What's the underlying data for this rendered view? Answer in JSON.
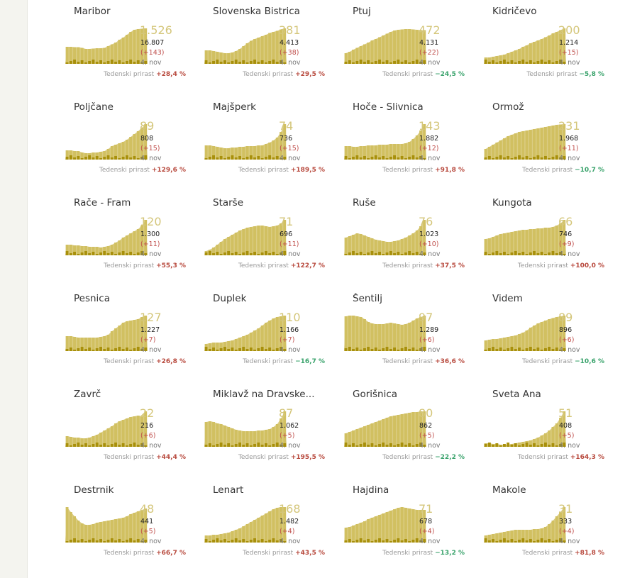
{
  "labels": {
    "growth_label": "Tedenski prirast",
    "date": "4. nov"
  },
  "colors": {
    "area": "#d5c46f",
    "bar": "#d1c061",
    "dark": "#a8900b",
    "pos": "#b84a3e",
    "neg": "#3aa36c"
  },
  "chart_data": [
    {
      "type": "bar",
      "title": "Maribor",
      "big": "1.526",
      "total": "16.807",
      "delta": "(+143)",
      "date": "4. nov",
      "growth": "+28,4 %",
      "trend": "pos",
      "values": [
        0.48,
        0.48,
        0.47,
        0.47,
        0.45,
        0.42,
        0.42,
        0.43,
        0.44,
        0.44,
        0.45,
        0.5,
        0.55,
        0.6,
        0.68,
        0.74,
        0.82,
        0.9,
        0.96,
        0.98,
        0.99,
        1.0
      ]
    },
    {
      "type": "bar",
      "title": "Slovenska Bistrica",
      "big": "381",
      "total": "4.413",
      "delta": "(+38)",
      "date": "4. nov",
      "growth": "+29,5 %",
      "trend": "pos",
      "values": [
        0.38,
        0.38,
        0.36,
        0.34,
        0.32,
        0.3,
        0.3,
        0.32,
        0.36,
        0.42,
        0.5,
        0.58,
        0.65,
        0.7,
        0.74,
        0.78,
        0.82,
        0.87,
        0.9,
        0.93,
        0.97,
        1.0
      ]
    },
    {
      "type": "bar",
      "title": "Ptuj",
      "big": "472",
      "total": "4.131",
      "delta": "(+22)",
      "date": "4. nov",
      "growth": "−24,5 %",
      "trend": "neg",
      "values": [
        0.3,
        0.34,
        0.4,
        0.45,
        0.5,
        0.55,
        0.6,
        0.66,
        0.7,
        0.75,
        0.8,
        0.85,
        0.9,
        0.94,
        0.96,
        0.97,
        0.98,
        0.98,
        0.97,
        0.96,
        0.95,
        0.95
      ]
    },
    {
      "type": "bar",
      "title": "Kidričevo",
      "big": "200",
      "total": "1.214",
      "delta": "(+15)",
      "date": "4. nov",
      "growth": "−5,8 %",
      "trend": "neg",
      "values": [
        0.18,
        0.18,
        0.2,
        0.22,
        0.24,
        0.26,
        0.3,
        0.34,
        0.38,
        0.42,
        0.48,
        0.52,
        0.58,
        0.62,
        0.66,
        0.7,
        0.75,
        0.8,
        0.86,
        0.9,
        0.95,
        1.0
      ]
    },
    {
      "type": "bar",
      "title": "Poljčane",
      "big": "89",
      "total": "808",
      "delta": "(+15)",
      "date": "4. nov",
      "growth": "+129,6 %",
      "trend": "pos",
      "values": [
        0.26,
        0.26,
        0.24,
        0.24,
        0.2,
        0.18,
        0.18,
        0.2,
        0.2,
        0.22,
        0.24,
        0.3,
        0.38,
        0.42,
        0.46,
        0.5,
        0.56,
        0.64,
        0.72,
        0.8,
        0.9,
        1.0
      ]
    },
    {
      "type": "bar",
      "title": "Majšperk",
      "big": "74",
      "total": "736",
      "delta": "(+15)",
      "date": "4. nov",
      "growth": "+189,5 %",
      "trend": "pos",
      "values": [
        0.4,
        0.4,
        0.38,
        0.36,
        0.34,
        0.32,
        0.32,
        0.34,
        0.34,
        0.36,
        0.36,
        0.38,
        0.38,
        0.38,
        0.4,
        0.4,
        0.44,
        0.48,
        0.54,
        0.62,
        0.78,
        1.0
      ]
    },
    {
      "type": "bar",
      "title": "Hoče - Slivnica",
      "big": "143",
      "total": "1.882",
      "delta": "(+12)",
      "date": "4. nov",
      "growth": "+91,8 %",
      "trend": "pos",
      "values": [
        0.38,
        0.38,
        0.36,
        0.36,
        0.38,
        0.38,
        0.4,
        0.4,
        0.4,
        0.42,
        0.42,
        0.42,
        0.44,
        0.44,
        0.44,
        0.44,
        0.46,
        0.5,
        0.58,
        0.68,
        0.82,
        1.0
      ]
    },
    {
      "type": "bar",
      "title": "Ormož",
      "big": "231",
      "total": "1.968",
      "delta": "(+11)",
      "date": "4. nov",
      "growth": "−10,7 %",
      "trend": "neg",
      "values": [
        0.3,
        0.36,
        0.42,
        0.48,
        0.54,
        0.6,
        0.66,
        0.7,
        0.74,
        0.78,
        0.8,
        0.82,
        0.84,
        0.86,
        0.88,
        0.9,
        0.92,
        0.94,
        0.96,
        0.98,
        0.99,
        1.0
      ]
    },
    {
      "type": "bar",
      "title": "Rače - Fram",
      "big": "120",
      "total": "1.300",
      "delta": "(+11)",
      "date": "4. nov",
      "growth": "+55,3 %",
      "trend": "pos",
      "values": [
        0.3,
        0.3,
        0.28,
        0.28,
        0.26,
        0.26,
        0.24,
        0.24,
        0.24,
        0.22,
        0.24,
        0.26,
        0.3,
        0.36,
        0.42,
        0.5,
        0.56,
        0.62,
        0.68,
        0.74,
        0.84,
        1.0
      ]
    },
    {
      "type": "bar",
      "title": "Starše",
      "big": "71",
      "total": "696",
      "delta": "(+11)",
      "date": "4. nov",
      "growth": "+122,7 %",
      "trend": "pos",
      "values": [
        0.12,
        0.16,
        0.22,
        0.3,
        0.38,
        0.46,
        0.52,
        0.58,
        0.64,
        0.7,
        0.74,
        0.78,
        0.8,
        0.82,
        0.84,
        0.84,
        0.82,
        0.8,
        0.82,
        0.84,
        0.9,
        1.0
      ]
    },
    {
      "type": "bar",
      "title": "Ruše",
      "big": "76",
      "total": "1.023",
      "delta": "(+10)",
      "date": "4. nov",
      "growth": "+37,5 %",
      "trend": "pos",
      "values": [
        0.5,
        0.54,
        0.58,
        0.62,
        0.6,
        0.56,
        0.52,
        0.48,
        0.44,
        0.42,
        0.4,
        0.38,
        0.38,
        0.4,
        0.42,
        0.46,
        0.5,
        0.56,
        0.62,
        0.7,
        0.82,
        1.0
      ]
    },
    {
      "type": "bar",
      "title": "Kungota",
      "big": "66",
      "total": "746",
      "delta": "(+9)",
      "date": "4. nov",
      "growth": "+100,0 %",
      "trend": "pos",
      "values": [
        0.46,
        0.48,
        0.52,
        0.56,
        0.6,
        0.62,
        0.64,
        0.66,
        0.68,
        0.7,
        0.72,
        0.72,
        0.74,
        0.74,
        0.76,
        0.76,
        0.78,
        0.78,
        0.8,
        0.84,
        0.9,
        1.0
      ]
    },
    {
      "type": "bar",
      "title": "Pesnica",
      "big": "127",
      "total": "1.227",
      "delta": "(+7)",
      "date": "4. nov",
      "growth": "+26,8 %",
      "trend": "pos",
      "values": [
        0.42,
        0.42,
        0.4,
        0.38,
        0.38,
        0.38,
        0.38,
        0.38,
        0.38,
        0.4,
        0.42,
        0.46,
        0.56,
        0.64,
        0.72,
        0.8,
        0.84,
        0.86,
        0.88,
        0.9,
        0.96,
        1.0
      ]
    },
    {
      "type": "bar",
      "title": "Duplek",
      "big": "110",
      "total": "1.166",
      "delta": "(+7)",
      "date": "4. nov",
      "growth": "−16,7 %",
      "trend": "neg",
      "values": [
        0.2,
        0.22,
        0.24,
        0.24,
        0.24,
        0.26,
        0.28,
        0.3,
        0.34,
        0.38,
        0.42,
        0.46,
        0.52,
        0.58,
        0.64,
        0.72,
        0.8,
        0.86,
        0.92,
        0.96,
        0.98,
        1.0
      ]
    },
    {
      "type": "bar",
      "title": "Šentilj",
      "big": "97",
      "total": "1.289",
      "delta": "(+6)",
      "date": "4. nov",
      "growth": "+36,6 %",
      "trend": "pos",
      "values": [
        0.98,
        1.0,
        1.0,
        0.98,
        0.96,
        0.9,
        0.82,
        0.78,
        0.76,
        0.76,
        0.76,
        0.78,
        0.8,
        0.78,
        0.76,
        0.74,
        0.76,
        0.8,
        0.86,
        0.92,
        0.96,
        1.0
      ]
    },
    {
      "type": "bar",
      "title": "Videm",
      "big": "89",
      "total": "896",
      "delta": "(+6)",
      "date": "4. nov",
      "growth": "−10,6 %",
      "trend": "neg",
      "values": [
        0.3,
        0.32,
        0.34,
        0.34,
        0.36,
        0.38,
        0.4,
        0.42,
        0.44,
        0.48,
        0.52,
        0.58,
        0.66,
        0.72,
        0.78,
        0.82,
        0.86,
        0.9,
        0.93,
        0.96,
        0.98,
        1.0
      ]
    },
    {
      "type": "bar",
      "title": "Zavrč",
      "big": "22",
      "total": "216",
      "delta": "(+6)",
      "date": "4. nov",
      "growth": "+44,4 %",
      "trend": "pos",
      "values": [
        0.3,
        0.28,
        0.26,
        0.26,
        0.24,
        0.24,
        0.26,
        0.3,
        0.34,
        0.4,
        0.46,
        0.52,
        0.58,
        0.66,
        0.72,
        0.76,
        0.8,
        0.84,
        0.86,
        0.88,
        0.86,
        1.0
      ]
    },
    {
      "type": "bar",
      "title": "Miklavž na Dravske...",
      "big": "87",
      "total": "1.062",
      "delta": "(+5)",
      "date": "4. nov",
      "growth": "+195,5 %",
      "trend": "pos",
      "values": [
        0.7,
        0.72,
        0.7,
        0.66,
        0.64,
        0.6,
        0.56,
        0.52,
        0.48,
        0.46,
        0.44,
        0.44,
        0.44,
        0.44,
        0.46,
        0.46,
        0.48,
        0.5,
        0.56,
        0.64,
        0.8,
        1.0
      ]
    },
    {
      "type": "bar",
      "title": "Gorišnica",
      "big": "80",
      "total": "862",
      "delta": "(+5)",
      "date": "4. nov",
      "growth": "−22,2 %",
      "trend": "neg",
      "values": [
        0.38,
        0.42,
        0.46,
        0.5,
        0.54,
        0.58,
        0.62,
        0.66,
        0.7,
        0.74,
        0.78,
        0.82,
        0.86,
        0.88,
        0.9,
        0.92,
        0.94,
        0.96,
        0.98,
        0.98,
        1.0,
        1.0
      ]
    },
    {
      "type": "bar",
      "title": "Sveta Ana",
      "big": "51",
      "total": "408",
      "delta": "(+5)",
      "date": "4. nov",
      "growth": "+164,3 %",
      "trend": "pos",
      "values": [
        0.1,
        0.1,
        0.08,
        0.08,
        0.06,
        0.06,
        0.06,
        0.08,
        0.1,
        0.12,
        0.14,
        0.16,
        0.18,
        0.22,
        0.26,
        0.32,
        0.38,
        0.46,
        0.56,
        0.66,
        0.82,
        1.0
      ]
    },
    {
      "type": "bar",
      "title": "Destrnik",
      "big": "48",
      "total": "441",
      "delta": "(+5)",
      "date": "4. nov",
      "growth": "+66,7 %",
      "trend": "pos",
      "values": [
        1.0,
        0.86,
        0.74,
        0.62,
        0.54,
        0.5,
        0.5,
        0.52,
        0.56,
        0.58,
        0.6,
        0.62,
        0.64,
        0.66,
        0.68,
        0.7,
        0.74,
        0.8,
        0.84,
        0.88,
        0.92,
        0.96
      ]
    },
    {
      "type": "bar",
      "title": "Lenart",
      "big": "168",
      "total": "1.482",
      "delta": "(+4)",
      "date": "4. nov",
      "growth": "+43,5 %",
      "trend": "pos",
      "values": [
        0.2,
        0.2,
        0.22,
        0.22,
        0.24,
        0.26,
        0.28,
        0.32,
        0.36,
        0.4,
        0.46,
        0.52,
        0.58,
        0.64,
        0.7,
        0.76,
        0.82,
        0.88,
        0.94,
        0.98,
        1.0,
        1.0
      ]
    },
    {
      "type": "bar",
      "title": "Hajdina",
      "big": "71",
      "total": "678",
      "delta": "(+4)",
      "date": "4. nov",
      "growth": "−13,2 %",
      "trend": "neg",
      "values": [
        0.42,
        0.44,
        0.48,
        0.52,
        0.56,
        0.6,
        0.66,
        0.7,
        0.74,
        0.78,
        0.82,
        0.86,
        0.9,
        0.94,
        0.98,
        1.0,
        0.98,
        0.96,
        0.94,
        0.92,
        0.92,
        0.92
      ]
    },
    {
      "type": "bar",
      "title": "Makole",
      "big": "31",
      "total": "333",
      "delta": "(+4)",
      "date": "4. nov",
      "growth": "+81,8 %",
      "trend": "pos",
      "values": [
        0.2,
        0.22,
        0.24,
        0.26,
        0.28,
        0.3,
        0.32,
        0.34,
        0.36,
        0.36,
        0.36,
        0.36,
        0.36,
        0.38,
        0.38,
        0.4,
        0.44,
        0.52,
        0.62,
        0.74,
        0.86,
        1.0
      ]
    }
  ]
}
